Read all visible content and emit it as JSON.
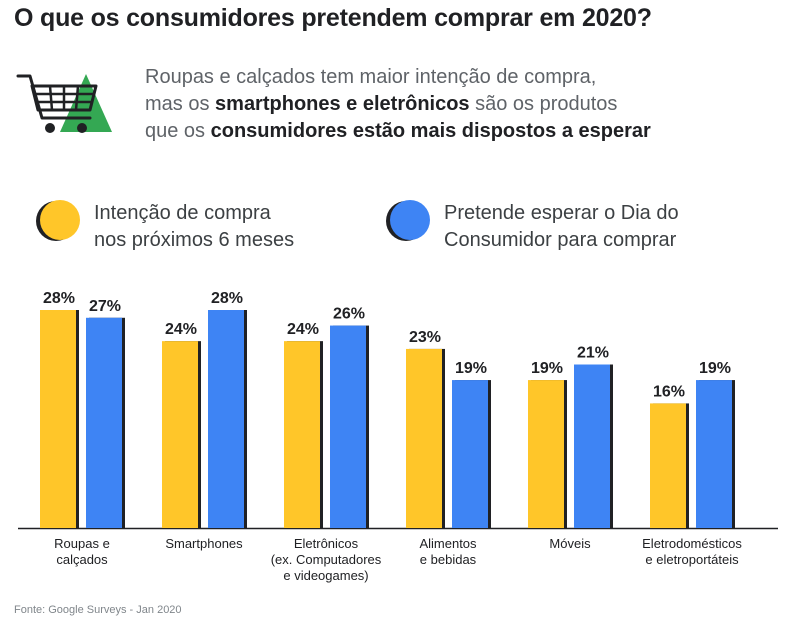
{
  "title": "O que os consumidores pretendem comprar em 2020?",
  "subtitle": {
    "line1": "Roupas e calçados tem maior intenção de compra,",
    "line2_prefix": "mas os ",
    "line2_bold": "smartphones e eletrônicos",
    "line2_suffix": " são os produtos",
    "line3_prefix": "que os ",
    "line3_bold": "consumidores estão mais dispostos a esperar"
  },
  "icon": {
    "name": "shopping-cart-icon"
  },
  "legend": [
    {
      "line1": "Intenção de compra",
      "line2": "nos próximos 6 meses",
      "color": "#FFC629"
    },
    {
      "line1": "Pretende esperar o Dia do",
      "line2": "Consumidor para comprar",
      "color": "#3E84F4"
    }
  ],
  "chart_data": {
    "type": "bar",
    "categories": [
      [
        "Roupas e",
        "calçados"
      ],
      [
        "Smartphones"
      ],
      [
        "Eletrônicos",
        "(ex. Computadores",
        "e videogames)"
      ],
      [
        "Alimentos",
        "e bebidas"
      ],
      [
        "Móveis"
      ],
      [
        "Eletrodomésticos",
        "e eletroportáteis"
      ]
    ],
    "series": [
      {
        "name": "Intenção de compra nos próximos 6 meses",
        "values": [
          28,
          24,
          24,
          23,
          19,
          16
        ],
        "color": "#FFC629"
      },
      {
        "name": "Pretende esperar o Dia do Consumidor para comprar",
        "values": [
          27,
          28,
          26,
          19,
          21,
          19
        ],
        "color": "#3E84F4"
      }
    ],
    "value_suffix": "%",
    "ylim": [
      0,
      28
    ]
  },
  "source": "Fonte: Google Surveys - Jan 2020"
}
